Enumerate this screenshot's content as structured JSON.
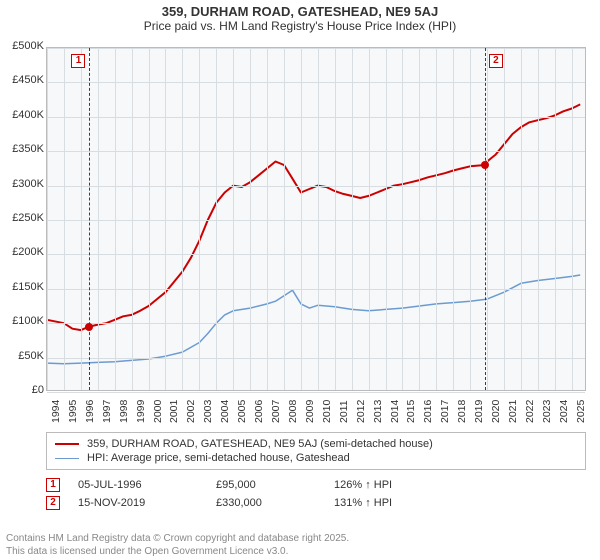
{
  "title_line1": "359, DURHAM ROAD, GATESHEAD, NE9 5AJ",
  "title_line2": "Price paid vs. HM Land Registry's House Price Index (HPI)",
  "title_fontsize": 13,
  "subtitle_fontsize": 12,
  "chart": {
    "type": "line",
    "plot_bg": "#f6f8fa",
    "grid_color": "#d8dde2",
    "border_color": "#bbbbbb",
    "x": {
      "min": 1994,
      "max": 2025.9,
      "ticks": [
        1994,
        1995,
        1996,
        1997,
        1998,
        1999,
        2000,
        2001,
        2002,
        2003,
        2004,
        2005,
        2006,
        2007,
        2008,
        2009,
        2010,
        2011,
        2012,
        2013,
        2014,
        2015,
        2016,
        2017,
        2018,
        2019,
        2020,
        2021,
        2022,
        2023,
        2024,
        2025
      ],
      "label_fontsize": 10.5,
      "label_rotate": -90
    },
    "y": {
      "min": 0,
      "max": 500000,
      "ticks": [
        0,
        50000,
        100000,
        150000,
        200000,
        250000,
        300000,
        350000,
        400000,
        450000,
        500000
      ],
      "tick_labels": [
        "£0",
        "£50K",
        "£100K",
        "£150K",
        "£200K",
        "£250K",
        "£300K",
        "£350K",
        "£400K",
        "£450K",
        "£500K"
      ],
      "label_fontsize": 11
    },
    "series": [
      {
        "id": "property",
        "label": "359, DURHAM ROAD, GATESHEAD, NE9 5AJ (semi-detached house)",
        "color": "#cc0000",
        "line_width": 2,
        "data": [
          [
            1994.0,
            105000
          ],
          [
            1995.0,
            100000
          ],
          [
            1995.5,
            92000
          ],
          [
            1996.0,
            90000
          ],
          [
            1996.5,
            95000
          ],
          [
            1997.0,
            98000
          ],
          [
            1997.5,
            100000
          ],
          [
            1998.0,
            105000
          ],
          [
            1998.5,
            110000
          ],
          [
            1999.0,
            112000
          ],
          [
            1999.5,
            118000
          ],
          [
            2000.0,
            125000
          ],
          [
            2000.5,
            135000
          ],
          [
            2001.0,
            145000
          ],
          [
            2001.5,
            160000
          ],
          [
            2002.0,
            175000
          ],
          [
            2002.5,
            195000
          ],
          [
            2003.0,
            220000
          ],
          [
            2003.5,
            250000
          ],
          [
            2004.0,
            275000
          ],
          [
            2004.5,
            290000
          ],
          [
            2005.0,
            300000
          ],
          [
            2005.5,
            298000
          ],
          [
            2006.0,
            305000
          ],
          [
            2006.5,
            315000
          ],
          [
            2007.0,
            325000
          ],
          [
            2007.5,
            335000
          ],
          [
            2008.0,
            330000
          ],
          [
            2008.5,
            310000
          ],
          [
            2009.0,
            290000
          ],
          [
            2009.5,
            295000
          ],
          [
            2010.0,
            300000
          ],
          [
            2010.5,
            298000
          ],
          [
            2011.0,
            292000
          ],
          [
            2011.5,
            288000
          ],
          [
            2012.0,
            285000
          ],
          [
            2012.5,
            282000
          ],
          [
            2013.0,
            285000
          ],
          [
            2013.5,
            290000
          ],
          [
            2014.0,
            295000
          ],
          [
            2014.5,
            300000
          ],
          [
            2015.0,
            302000
          ],
          [
            2015.5,
            305000
          ],
          [
            2016.0,
            308000
          ],
          [
            2016.5,
            312000
          ],
          [
            2017.0,
            315000
          ],
          [
            2017.5,
            318000
          ],
          [
            2018.0,
            322000
          ],
          [
            2018.5,
            325000
          ],
          [
            2019.0,
            328000
          ],
          [
            2019.87,
            330000
          ],
          [
            2020.0,
            335000
          ],
          [
            2020.5,
            345000
          ],
          [
            2021.0,
            360000
          ],
          [
            2021.5,
            375000
          ],
          [
            2022.0,
            385000
          ],
          [
            2022.5,
            392000
          ],
          [
            2023.0,
            395000
          ],
          [
            2023.5,
            398000
          ],
          [
            2024.0,
            402000
          ],
          [
            2024.5,
            408000
          ],
          [
            2025.0,
            412000
          ],
          [
            2025.5,
            418000
          ]
        ]
      },
      {
        "id": "hpi",
        "label": "HPI: Average price, semi-detached house, Gateshead",
        "color": "#6b9bd1",
        "line_width": 1.5,
        "data": [
          [
            1994.0,
            42000
          ],
          [
            1995.0,
            41000
          ],
          [
            1996.0,
            42000
          ],
          [
            1997.0,
            43000
          ],
          [
            1998.0,
            44000
          ],
          [
            1999.0,
            46000
          ],
          [
            2000.0,
            48000
          ],
          [
            2001.0,
            52000
          ],
          [
            2002.0,
            58000
          ],
          [
            2003.0,
            72000
          ],
          [
            2003.5,
            85000
          ],
          [
            2004.0,
            100000
          ],
          [
            2004.5,
            112000
          ],
          [
            2005.0,
            118000
          ],
          [
            2006.0,
            122000
          ],
          [
            2007.0,
            128000
          ],
          [
            2007.5,
            132000
          ],
          [
            2008.0,
            140000
          ],
          [
            2008.5,
            148000
          ],
          [
            2009.0,
            128000
          ],
          [
            2009.5,
            122000
          ],
          [
            2010.0,
            126000
          ],
          [
            2011.0,
            124000
          ],
          [
            2012.0,
            120000
          ],
          [
            2013.0,
            118000
          ],
          [
            2014.0,
            120000
          ],
          [
            2015.0,
            122000
          ],
          [
            2016.0,
            125000
          ],
          [
            2017.0,
            128000
          ],
          [
            2018.0,
            130000
          ],
          [
            2019.0,
            132000
          ],
          [
            2020.0,
            135000
          ],
          [
            2021.0,
            145000
          ],
          [
            2022.0,
            158000
          ],
          [
            2023.0,
            162000
          ],
          [
            2024.0,
            165000
          ],
          [
            2025.0,
            168000
          ],
          [
            2025.5,
            170000
          ]
        ]
      }
    ],
    "markers": [
      {
        "n": "1",
        "x": 1996.51,
        "y": 95000,
        "box_side": "left"
      },
      {
        "n": "2",
        "x": 2019.87,
        "y": 330000,
        "box_side": "right"
      }
    ]
  },
  "legend": {
    "border_color": "#bbbbbb",
    "fontsize": 11,
    "rows": [
      {
        "color": "#cc0000",
        "width": 2,
        "label": "359, DURHAM ROAD, GATESHEAD, NE9 5AJ (semi-detached house)"
      },
      {
        "color": "#6b9bd1",
        "width": 1.5,
        "label": "HPI: Average price, semi-detached house, Gateshead"
      }
    ]
  },
  "transactions": {
    "fontsize": 11,
    "box_border": "#cc0000",
    "rows": [
      {
        "n": "1",
        "date": "05-JUL-1996",
        "price": "£95,000",
        "hpi": "126% ↑ HPI"
      },
      {
        "n": "2",
        "date": "15-NOV-2019",
        "price": "£330,000",
        "hpi": "131% ↑ HPI"
      }
    ]
  },
  "footer_line1": "Contains HM Land Registry data © Crown copyright and database right 2025.",
  "footer_line2": "This data is licensed under the Open Government Licence v3.0.",
  "footer_color": "#888888",
  "footer_fontsize": 10
}
